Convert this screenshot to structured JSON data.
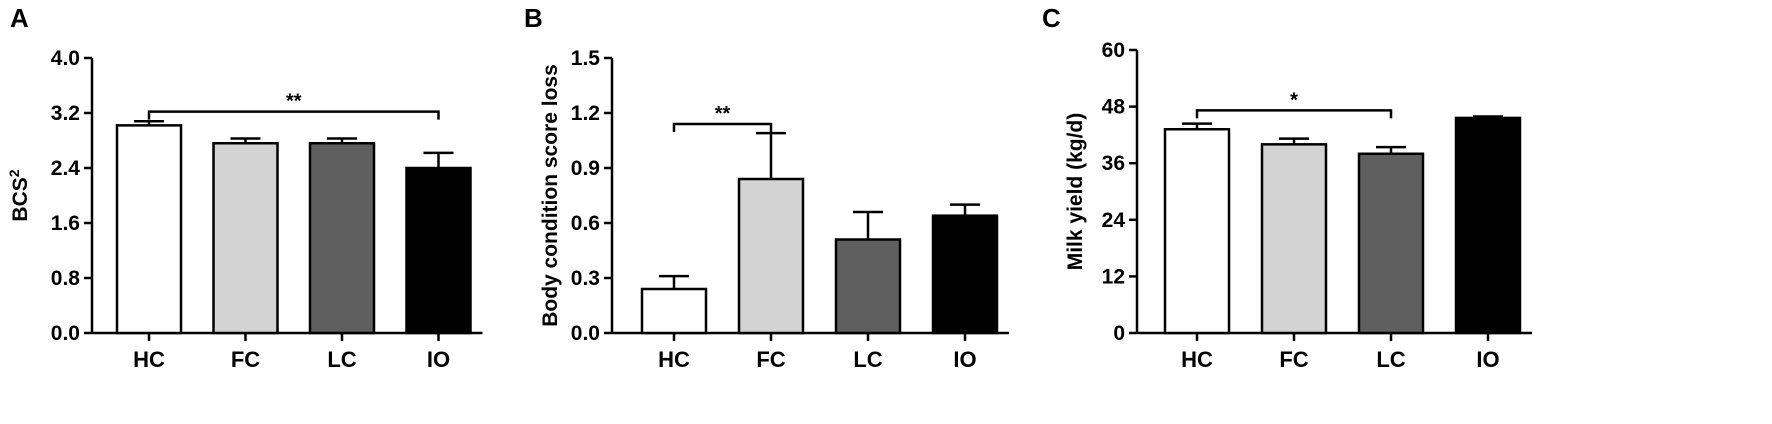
{
  "chart_data": [
    {
      "type": "bar",
      "panel": "A",
      "categories": [
        "HC",
        "FC",
        "LC",
        "IO"
      ],
      "values": [
        3.02,
        2.76,
        2.76,
        2.4
      ],
      "errors": [
        0.06,
        0.07,
        0.07,
        0.22
      ],
      "bar_colors": [
        "#ffffff",
        "#d3d3d3",
        "#5f5f5f",
        "#000000"
      ],
      "ylabel": "BCS²",
      "ylim": [
        0,
        4.0
      ],
      "yticks": [
        "0.0",
        "0.8",
        "1.6",
        "2.4",
        "3.2",
        "4.0"
      ],
      "significance": [
        {
          "from": "HC",
          "to": "IO",
          "label": "**",
          "y": 3.22
        }
      ]
    },
    {
      "type": "bar",
      "panel": "B",
      "categories": [
        "HC",
        "FC",
        "LC",
        "IO"
      ],
      "values": [
        0.24,
        0.84,
        0.51,
        0.64
      ],
      "errors": [
        0.07,
        0.25,
        0.15,
        0.06
      ],
      "bar_colors": [
        "#ffffff",
        "#d3d3d3",
        "#5f5f5f",
        "#000000"
      ],
      "ylabel": "Body condition score loss",
      "ylim": [
        0,
        1.5
      ],
      "yticks": [
        "0.0",
        "0.3",
        "0.6",
        "0.9",
        "1.2",
        "1.5"
      ],
      "significance": [
        {
          "from": "HC",
          "to": "FC",
          "label": "**",
          "y": 1.14
        }
      ]
    },
    {
      "type": "bar",
      "panel": "C",
      "categories": [
        "HC",
        "FC",
        "LC",
        "IO"
      ],
      "values": [
        43.2,
        40.0,
        38.0,
        45.6
      ],
      "errors": [
        1.2,
        1.2,
        1.4,
        0.3
      ],
      "bar_colors": [
        "#ffffff",
        "#d3d3d3",
        "#5f5f5f",
        "#000000"
      ],
      "ylabel": "Milk yield (kg/d)",
      "ylim": [
        0,
        60
      ],
      "yticks": [
        "0",
        "12",
        "24",
        "36",
        "48",
        "60"
      ],
      "significance": [
        {
          "from": "HC",
          "to": "LC",
          "label": "*",
          "y": 47.2
        }
      ]
    }
  ]
}
